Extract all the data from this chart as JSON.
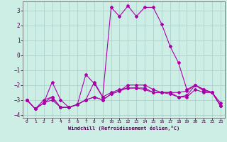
{
  "xlabel": "Windchill (Refroidissement éolien,°C)",
  "x": [
    0,
    1,
    2,
    3,
    4,
    5,
    6,
    7,
    8,
    9,
    10,
    11,
    12,
    13,
    14,
    15,
    16,
    17,
    18,
    19,
    20,
    21,
    22,
    23
  ],
  "lines": [
    [
      -3.0,
      -3.6,
      -3.2,
      -3.0,
      -3.5,
      -3.5,
      -3.3,
      -3.0,
      -1.8,
      -2.8,
      3.2,
      2.6,
      3.3,
      2.6,
      3.2,
      3.2,
      2.1,
      0.6,
      -0.5,
      -2.3,
      -2.0,
      -2.4,
      -2.5,
      -3.4
    ],
    [
      -3.0,
      -3.6,
      -3.2,
      -1.8,
      -3.0,
      -3.5,
      -3.3,
      -1.3,
      -1.9,
      -2.8,
      -2.5,
      -2.3,
      -2.2,
      -2.2,
      -2.3,
      -2.5,
      -2.5,
      -2.5,
      -2.5,
      -2.4,
      -2.0,
      -2.3,
      -2.5,
      -3.4
    ],
    [
      -3.0,
      -3.6,
      -3.2,
      -2.8,
      -3.5,
      -3.5,
      -3.3,
      -3.0,
      -2.8,
      -3.0,
      -2.6,
      -2.4,
      -2.2,
      -2.2,
      -2.2,
      -2.5,
      -2.5,
      -2.5,
      -2.8,
      -2.8,
      -2.3,
      -2.5,
      -2.5,
      -3.4
    ],
    [
      -3.0,
      -3.6,
      -3.0,
      -2.8,
      -3.5,
      -3.5,
      -3.3,
      -3.0,
      -2.8,
      -3.0,
      -2.6,
      -2.4,
      -2.0,
      -2.0,
      -2.0,
      -2.3,
      -2.5,
      -2.6,
      -2.8,
      -2.7,
      -2.0,
      -2.3,
      -2.5,
      -3.2
    ]
  ],
  "line_color": "#aa00aa",
  "bg_color": "#cceee4",
  "grid_color": "#aacccc",
  "ylim": [
    -4.2,
    3.6
  ],
  "yticks": [
    -4,
    -3,
    -2,
    -1,
    0,
    1,
    2,
    3
  ],
  "xticks": [
    0,
    1,
    2,
    3,
    4,
    5,
    6,
    7,
    8,
    9,
    10,
    11,
    12,
    13,
    14,
    15,
    16,
    17,
    18,
    19,
    20,
    21,
    22,
    23
  ],
  "marker": "D",
  "marker_size": 2.0,
  "line_width": 0.8
}
